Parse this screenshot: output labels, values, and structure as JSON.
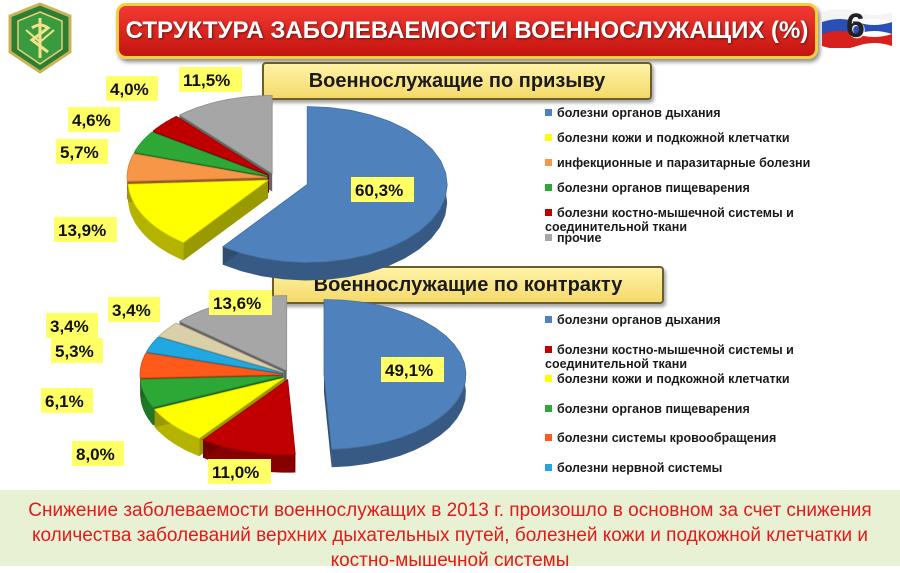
{
  "header": {
    "title": "СТРУКТУРА ЗАБОЛЕВАЕМОСТИ ВОЕННОСЛУЖАЩИХ (%)",
    "slide_number": "6"
  },
  "colors": {
    "blue": "#4f81bd",
    "yellow": "#ffff00",
    "orange": "#f79646",
    "green": "#2da836",
    "red": "#c00000",
    "gray": "#a6a6a6",
    "light_orange": "#ff5a1a",
    "cyan": "#21a8e0",
    "beige": "#d9cfa8"
  },
  "chart_data": [
    {
      "type": "pie",
      "title": "Военнослужащие по призыву",
      "categories": [
        "болезни органов дыхания",
        "болезни кожи и подкожной клетчатки",
        "инфекционные и паразитарные болезни",
        "болезни органов пищеварения",
        "болезни костно-мышечной системы и соединительной ткани",
        "прочие"
      ],
      "values": [
        60.3,
        13.9,
        5.7,
        4.6,
        4.0,
        11.5
      ],
      "labels": [
        "60,3%",
        "13,9%",
        "5,7%",
        "4,6%",
        "4,0%",
        "11,5%"
      ],
      "colors": [
        "#4f81bd",
        "#ffff00",
        "#f79646",
        "#2da836",
        "#c00000",
        "#a6a6a6"
      ],
      "legend_position": "right"
    },
    {
      "type": "pie",
      "title": "Военнослужащие по контракту",
      "categories": [
        "болезни органов дыхания",
        "болезни костно-мышечной системы и соединительной ткани",
        "болезни кожи и подкожной клетчатки",
        "болезни органов пищеварения",
        "болезни системы кровообращения",
        "болезни нервной системы",
        "",
        ""
      ],
      "values": [
        49.1,
        11.0,
        8.0,
        6.1,
        5.3,
        3.4,
        3.4,
        13.6
      ],
      "labels": [
        "49,1%",
        "11,0%",
        "8,0%",
        "6,1%",
        "5,3%",
        "3,4%",
        "3,4%",
        "13,6%"
      ],
      "colors": [
        "#4f81bd",
        "#c00000",
        "#ffff00",
        "#2da836",
        "#ff5a1a",
        "#21a8e0",
        "#d9cfa8",
        "#a6a6a6"
      ],
      "legend_position": "right"
    }
  ],
  "legend_conscripts": [
    {
      "label": "болезни органов дыхания",
      "color": "#4f81bd"
    },
    {
      "label": "болезни кожи и подкожной клетчатки",
      "color": "#ffff00"
    },
    {
      "label": "инфекционные и паразитарные болезни",
      "color": "#f79646"
    },
    {
      "label": "болезни органов пищеварения",
      "color": "#2da836"
    },
    {
      "label": "болезни костно-мышечной системы и соединительной ткани",
      "color": "#c00000"
    },
    {
      "label": "прочие",
      "color": "#a6a6a6"
    }
  ],
  "legend_contract": [
    {
      "label": "болезни органов дыхания",
      "color": "#4f81bd"
    },
    {
      "label": "болезни костно-мышечной системы и соединительной ткани",
      "color": "#c00000"
    },
    {
      "label": "болезни кожи и подкожной клетчатки",
      "color": "#ffff00"
    },
    {
      "label": "болезни органов пищеварения",
      "color": "#2da836"
    },
    {
      "label": "болезни системы кровообращения",
      "color": "#ff5a1a"
    },
    {
      "label": "болезни нервной системы",
      "color": "#21a8e0"
    }
  ],
  "footer": {
    "text": "Снижение заболеваемости военнослужащих в 2013 г. произошло в основном за счет снижения количества  заболеваний верхних дыхательных путей, болезней кожи и подкожной клетчатки и костно-мышечной системы"
  }
}
